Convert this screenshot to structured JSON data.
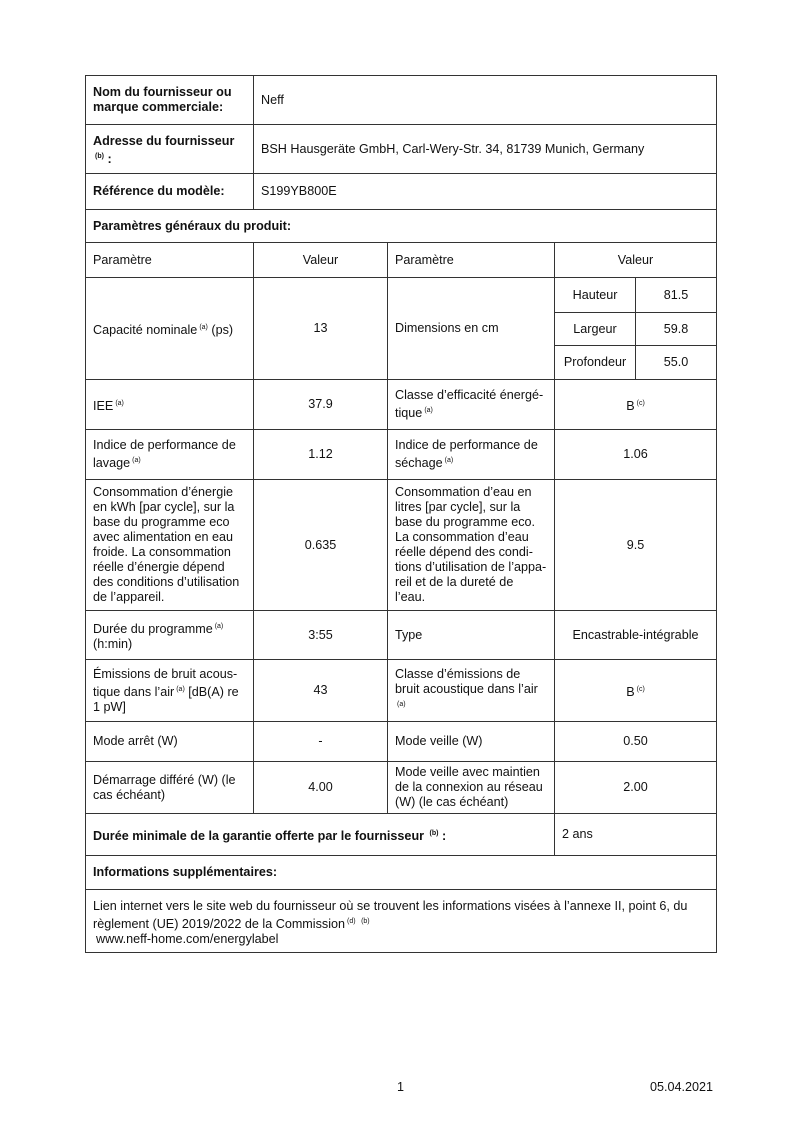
{
  "supplier": {
    "label": "Nom du fournisseur ou\nmarque commerciale:",
    "value": "Neff"
  },
  "address": {
    "label": "Adresse du fournisseur",
    "sup": "(b)",
    "suffix": " :",
    "value": "BSH Hausgeräte GmbH, Carl-Wery-Str. 34, 81739 Munich, Germany"
  },
  "model": {
    "label": "Référence du modèle:",
    "value": "S199YB800E"
  },
  "general_params_heading": "Paramètres généraux du produit:",
  "headers": {
    "param1": "Paramètre",
    "value1": "Valeur",
    "param2": "Paramètre",
    "value2": "Valeur"
  },
  "rows": {
    "capacity": {
      "label": "Capacité nominale",
      "sup": "(a)",
      "suffix": " (ps)",
      "value": "13"
    },
    "dimensions": {
      "label": "Dimensions en cm",
      "height_label": "Hauteur",
      "height": "81.5",
      "width_label": "Largeur",
      "width": "59.8",
      "depth_label": "Profondeur",
      "depth": "55.0"
    },
    "eei": {
      "label": "IEE",
      "sup": "(a)",
      "value": "37.9"
    },
    "energy_class": {
      "label": "Classe d’efficacité énergé-\ntique",
      "sup": "(a)",
      "value": "B",
      "value_sup": "(c)"
    },
    "cleaning": {
      "label": "Indice de performance de\nlavage",
      "sup": "(a)",
      "value": "1.12"
    },
    "drying": {
      "label": "Indice de performance de\nséchage",
      "sup": "(a)",
      "value": "1.06"
    },
    "energy": {
      "label": "Consommation d’énergie\nen kWh [par cycle], sur la\nbase du programme eco\navec alimentation en eau\nfroide. La consommation\nréelle d’énergie dépend\ndes conditions d’utilisation\nde l’appareil.",
      "value": "0.635"
    },
    "water": {
      "label": "Consommation d’eau en\nlitres [par cycle], sur la\nbase du programme eco.\nLa consommation d’eau\nréelle dépend des condi-\ntions d’utilisation de l’appa-\nreil et de la dureté de\nl’eau.",
      "value": "9.5"
    },
    "duration": {
      "label": "Durée du programme",
      "sup": "(a)",
      "suffix": "\n(h:min)",
      "value": "3:55"
    },
    "type": {
      "label": "Type",
      "value": "Encastrable-intégrable"
    },
    "noise": {
      "label": "Émissions de bruit acous-\ntique dans l’air",
      "sup": "(a)",
      "suffix": " [dB(A) re\n1 pW]",
      "value": "43"
    },
    "noise_class": {
      "label": "Classe d’émissions de\nbruit acoustique dans l’air",
      "sup": "(a)",
      "value": "B",
      "value_sup": "(c)"
    },
    "off_mode": {
      "label": "Mode arrêt (W)",
      "value": "-"
    },
    "standby": {
      "label": "Mode veille (W)",
      "value": "0.50"
    },
    "delay_start": {
      "label": "Démarrage différé (W) (le\ncas échéant)",
      "value": "4.00"
    },
    "networked_standby": {
      "label": "Mode veille avec maintien\nde la connexion au réseau\n(W) (le cas échéant)",
      "value": "2.00"
    }
  },
  "warranty": {
    "label": "Durée minimale de la garantie offerte par le fournisseur",
    "sup": "(b)",
    "suffix": " :",
    "value": "2 ans"
  },
  "additional": {
    "heading": "Informations supplémentaires:",
    "text": "Lien internet vers le site web du fournisseur où se trouvent les informations visées à l’annexe II, point 6, du\nrèglement (UE) 2019/2022 de la Commission",
    "sup1": "(d)",
    "sup2": "(b)",
    "url": "www.neff-home.com/energylabel"
  },
  "footer": {
    "page": "1",
    "date": "05.04.2021"
  }
}
